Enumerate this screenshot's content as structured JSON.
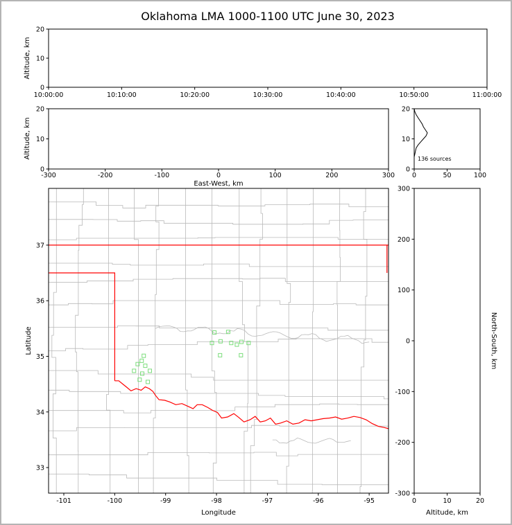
{
  "figure": {
    "title": "Oklahoma LMA 1000-1100 UTC June 30, 2023",
    "background": "#ffffff",
    "border_color": "#b4b4b4"
  },
  "colors": {
    "axis": "#000000",
    "county_lines": "#b9b9b9",
    "state_border": "#ff0000",
    "source_marker": "#7cdd7c",
    "histogram_line": "#000000"
  },
  "chart_data": [
    {
      "id": "time-height",
      "type": "scatter",
      "xlabel": "",
      "ylabel": "Altitude, km",
      "xlim": [
        0,
        3600
      ],
      "x_ticks": [
        "10:00:00",
        "10:10:00",
        "10:20:00",
        "10:30:00",
        "10:40:00",
        "10:50:00",
        "11:00:00"
      ],
      "x_tick_positions": [
        0,
        600,
        1200,
        1800,
        2400,
        3000,
        3600
      ],
      "ylim": [
        0,
        20
      ],
      "y_ticks": [
        0,
        10,
        20
      ],
      "points": []
    },
    {
      "id": "ew-height",
      "type": "scatter",
      "xlabel": "East-West, km",
      "ylabel": "Altitude, km",
      "xlim": [
        -300,
        300
      ],
      "x_ticks": [
        -300,
        -200,
        -100,
        0,
        100,
        200,
        300
      ],
      "ylim": [
        0,
        20
      ],
      "y_ticks": [
        0,
        10,
        20
      ],
      "points": []
    },
    {
      "id": "altitude-histogram",
      "type": "line",
      "xlabel": "",
      "ylabel": "",
      "xlim": [
        0,
        100
      ],
      "x_ticks": [
        0,
        50,
        100
      ],
      "ylim": [
        0,
        20
      ],
      "y_ticks": [
        0,
        10,
        20
      ],
      "annotation": "136 sources",
      "series": [
        {
          "name": "source count by altitude km",
          "points": [
            [
              0,
              0
            ],
            [
              0,
              1
            ],
            [
              0,
              2
            ],
            [
              0,
              3
            ],
            [
              0,
              4
            ],
            [
              1,
              5
            ],
            [
              2,
              6
            ],
            [
              3,
              7
            ],
            [
              6,
              8
            ],
            [
              10,
              9
            ],
            [
              14,
              10
            ],
            [
              18,
              11
            ],
            [
              20,
              12
            ],
            [
              17,
              13
            ],
            [
              14,
              14
            ],
            [
              12,
              15
            ],
            [
              9,
              16
            ],
            [
              6,
              17
            ],
            [
              3,
              18
            ],
            [
              1,
              19
            ],
            [
              0,
              20
            ]
          ]
        }
      ]
    },
    {
      "id": "plan-view",
      "type": "scatter",
      "xlabel": "Longitude",
      "ylabel": "Latitude",
      "xlim": [
        -101.3,
        -94.62
      ],
      "x_ticks": [
        -101,
        -100,
        -99,
        -98,
        -97,
        -96,
        -95
      ],
      "ylim": [
        32.54,
        38.02
      ],
      "y_ticks": [
        33,
        34,
        35,
        36,
        37
      ],
      "marker": "open-square",
      "points": [
        [
          -99.43,
          35.01
        ],
        [
          -99.55,
          34.86
        ],
        [
          -99.4,
          34.83
        ],
        [
          -99.62,
          34.74
        ],
        [
          -99.46,
          34.69
        ],
        [
          -99.31,
          34.74
        ],
        [
          -99.51,
          34.58
        ],
        [
          -99.35,
          34.54
        ],
        [
          -99.47,
          34.92
        ],
        [
          -98.04,
          35.43
        ],
        [
          -97.77,
          35.44
        ],
        [
          -98.09,
          35.24
        ],
        [
          -97.92,
          35.27
        ],
        [
          -97.71,
          35.24
        ],
        [
          -97.6,
          35.21
        ],
        [
          -97.51,
          35.26
        ],
        [
          -97.37,
          35.24
        ],
        [
          -97.93,
          35.02
        ],
        [
          -97.52,
          35.02
        ]
      ],
      "state_border_polylines": [
        [
          [
            -101.3,
            37.0
          ],
          [
            -94.62,
            37.0
          ]
        ],
        [
          [
            -94.65,
            37.0
          ],
          [
            -94.65,
            36.5
          ]
        ],
        [
          [
            -101.3,
            36.5
          ],
          [
            -100.0,
            36.5
          ],
          [
            -100.0,
            34.56
          ]
        ],
        [
          [
            -100.0,
            34.56
          ],
          [
            -99.92,
            34.56
          ],
          [
            -99.84,
            34.5
          ],
          [
            -99.76,
            34.44
          ],
          [
            -99.68,
            34.38
          ],
          [
            -99.58,
            34.42
          ],
          [
            -99.48,
            34.39
          ],
          [
            -99.4,
            34.45
          ],
          [
            -99.32,
            34.42
          ],
          [
            -99.25,
            34.37
          ],
          [
            -99.2,
            34.3
          ],
          [
            -99.13,
            34.22
          ],
          [
            -99.02,
            34.21
          ],
          [
            -98.92,
            34.18
          ],
          [
            -98.8,
            34.13
          ],
          [
            -98.68,
            34.15
          ],
          [
            -98.56,
            34.1
          ],
          [
            -98.46,
            34.06
          ],
          [
            -98.38,
            34.13
          ],
          [
            -98.28,
            34.13
          ],
          [
            -98.17,
            34.08
          ],
          [
            -98.08,
            34.03
          ],
          [
            -97.98,
            33.99
          ],
          [
            -97.9,
            33.89
          ],
          [
            -97.78,
            33.91
          ],
          [
            -97.66,
            33.97
          ],
          [
            -97.56,
            33.9
          ],
          [
            -97.46,
            33.82
          ],
          [
            -97.34,
            33.86
          ],
          [
            -97.24,
            33.92
          ],
          [
            -97.14,
            33.82
          ],
          [
            -97.04,
            33.84
          ],
          [
            -96.94,
            33.89
          ],
          [
            -96.84,
            33.78
          ],
          [
            -96.74,
            33.8
          ],
          [
            -96.62,
            33.84
          ],
          [
            -96.5,
            33.78
          ],
          [
            -96.38,
            33.8
          ],
          [
            -96.26,
            33.86
          ],
          [
            -96.14,
            33.84
          ],
          [
            -96.02,
            33.86
          ],
          [
            -95.9,
            33.88
          ],
          [
            -95.78,
            33.89
          ],
          [
            -95.66,
            33.91
          ],
          [
            -95.54,
            33.87
          ],
          [
            -95.42,
            33.89
          ],
          [
            -95.3,
            33.92
          ],
          [
            -95.18,
            33.9
          ],
          [
            -95.06,
            33.86
          ],
          [
            -94.94,
            33.79
          ],
          [
            -94.82,
            33.74
          ],
          [
            -94.7,
            33.72
          ],
          [
            -94.62,
            33.7
          ]
        ]
      ]
    },
    {
      "id": "ns-height",
      "type": "scatter",
      "xlabel": "Altitude, km",
      "ylabel": "North-South, km",
      "xlim": [
        0,
        20
      ],
      "x_ticks": [
        0,
        10,
        20
      ],
      "ylim": [
        -300,
        300
      ],
      "y_ticks": [
        -300,
        -200,
        -100,
        0,
        100,
        200,
        300
      ],
      "points": []
    }
  ]
}
